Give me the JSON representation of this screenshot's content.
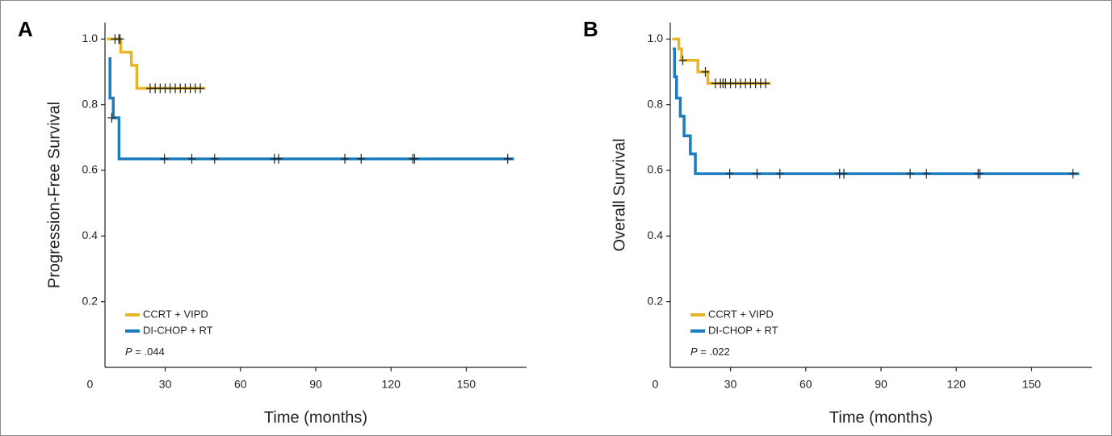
{
  "chart_data": [
    {
      "type": "step",
      "label": "A",
      "xlabel": "Time (months)",
      "ylabel": "Progression-Free Survival",
      "xlim": [
        6,
        174
      ],
      "xticks": [
        0,
        30,
        60,
        90,
        120,
        150
      ],
      "ylim": [
        0,
        1.05
      ],
      "yticks": [
        0.2,
        0.4,
        0.6,
        0.8,
        {
          "value": 1,
          "label": "1.0"
        }
      ],
      "annotation_symbol": "P",
      "annotation": "= .044",
      "series": [
        {
          "name": "CCRT + VIPD",
          "color": "#e6b528",
          "x": [
            6.8,
            12.3,
            16.5,
            18.7,
            46
          ],
          "values": [
            1.0,
            0.96,
            0.92,
            0.85,
            0.85
          ],
          "censor_x": [
            10,
            11.5,
            12,
            24,
            26,
            28,
            30,
            32,
            34,
            36,
            38,
            40,
            42,
            44
          ],
          "censor_values": [
            1,
            1,
            1,
            0.85,
            0.85,
            0.85,
            0.85,
            0.85,
            0.85,
            0.85,
            0.85,
            0.85,
            0.85,
            0.85
          ]
        },
        {
          "name": "DI-CHOP + RT",
          "color": "#1b7cc0",
          "x": [
            7.4,
            8,
            9.3,
            11.6,
            169
          ],
          "values": [
            0.94,
            0.82,
            0.76,
            0.635,
            0.635
          ],
          "censor_x": [
            8.7,
            29.7,
            40.6,
            49.7,
            73.5,
            75.2,
            101.6,
            108.1,
            128.7,
            129.4,
            166.5
          ],
          "censor_values": [
            0.76,
            0.635,
            0.635,
            0.635,
            0.635,
            0.635,
            0.635,
            0.635,
            0.635,
            0.635,
            0.635
          ]
        }
      ]
    },
    {
      "type": "step",
      "label": "B",
      "xlabel": "Time (months)",
      "ylabel": "Overall Survival",
      "xlim": [
        6,
        174
      ],
      "xticks": [
        0,
        30,
        60,
        90,
        120,
        150
      ],
      "ylim": [
        0,
        1.05
      ],
      "yticks": [
        0.2,
        0.4,
        0.6,
        0.8,
        {
          "value": 1,
          "label": "1.0"
        }
      ],
      "annotation_symbol": "P",
      "annotation": "= .022",
      "series": [
        {
          "name": "CCRT + VIPD",
          "color": "#e6b528",
          "x": [
            6.8,
            9.4,
            10.5,
            17,
            21,
            46
          ],
          "values": [
            1.0,
            0.97,
            0.935,
            0.9,
            0.865,
            0.865
          ],
          "censor_x": [
            11,
            20,
            24,
            26,
            27,
            28,
            30,
            32,
            34,
            36,
            38,
            40,
            42,
            44
          ],
          "censor_values": [
            0.935,
            0.9,
            0.865,
            0.865,
            0.865,
            0.865,
            0.865,
            0.865,
            0.865,
            0.865,
            0.865,
            0.865,
            0.865,
            0.865
          ]
        },
        {
          "name": "DI-CHOP + RT",
          "color": "#1b7cc0",
          "x": [
            7,
            7.7,
            8.5,
            10,
            11.5,
            14,
            16,
            169
          ],
          "values": [
            0.97,
            0.885,
            0.82,
            0.765,
            0.705,
            0.65,
            0.59,
            0.59
          ],
          "censor_x": [
            29.7,
            40.6,
            49.7,
            73.5,
            75.2,
            101.6,
            108.1,
            128.7,
            129.4,
            166.5
          ],
          "censor_values": [
            0.59,
            0.59,
            0.59,
            0.59,
            0.59,
            0.59,
            0.59,
            0.59,
            0.59,
            0.59
          ]
        }
      ]
    }
  ]
}
